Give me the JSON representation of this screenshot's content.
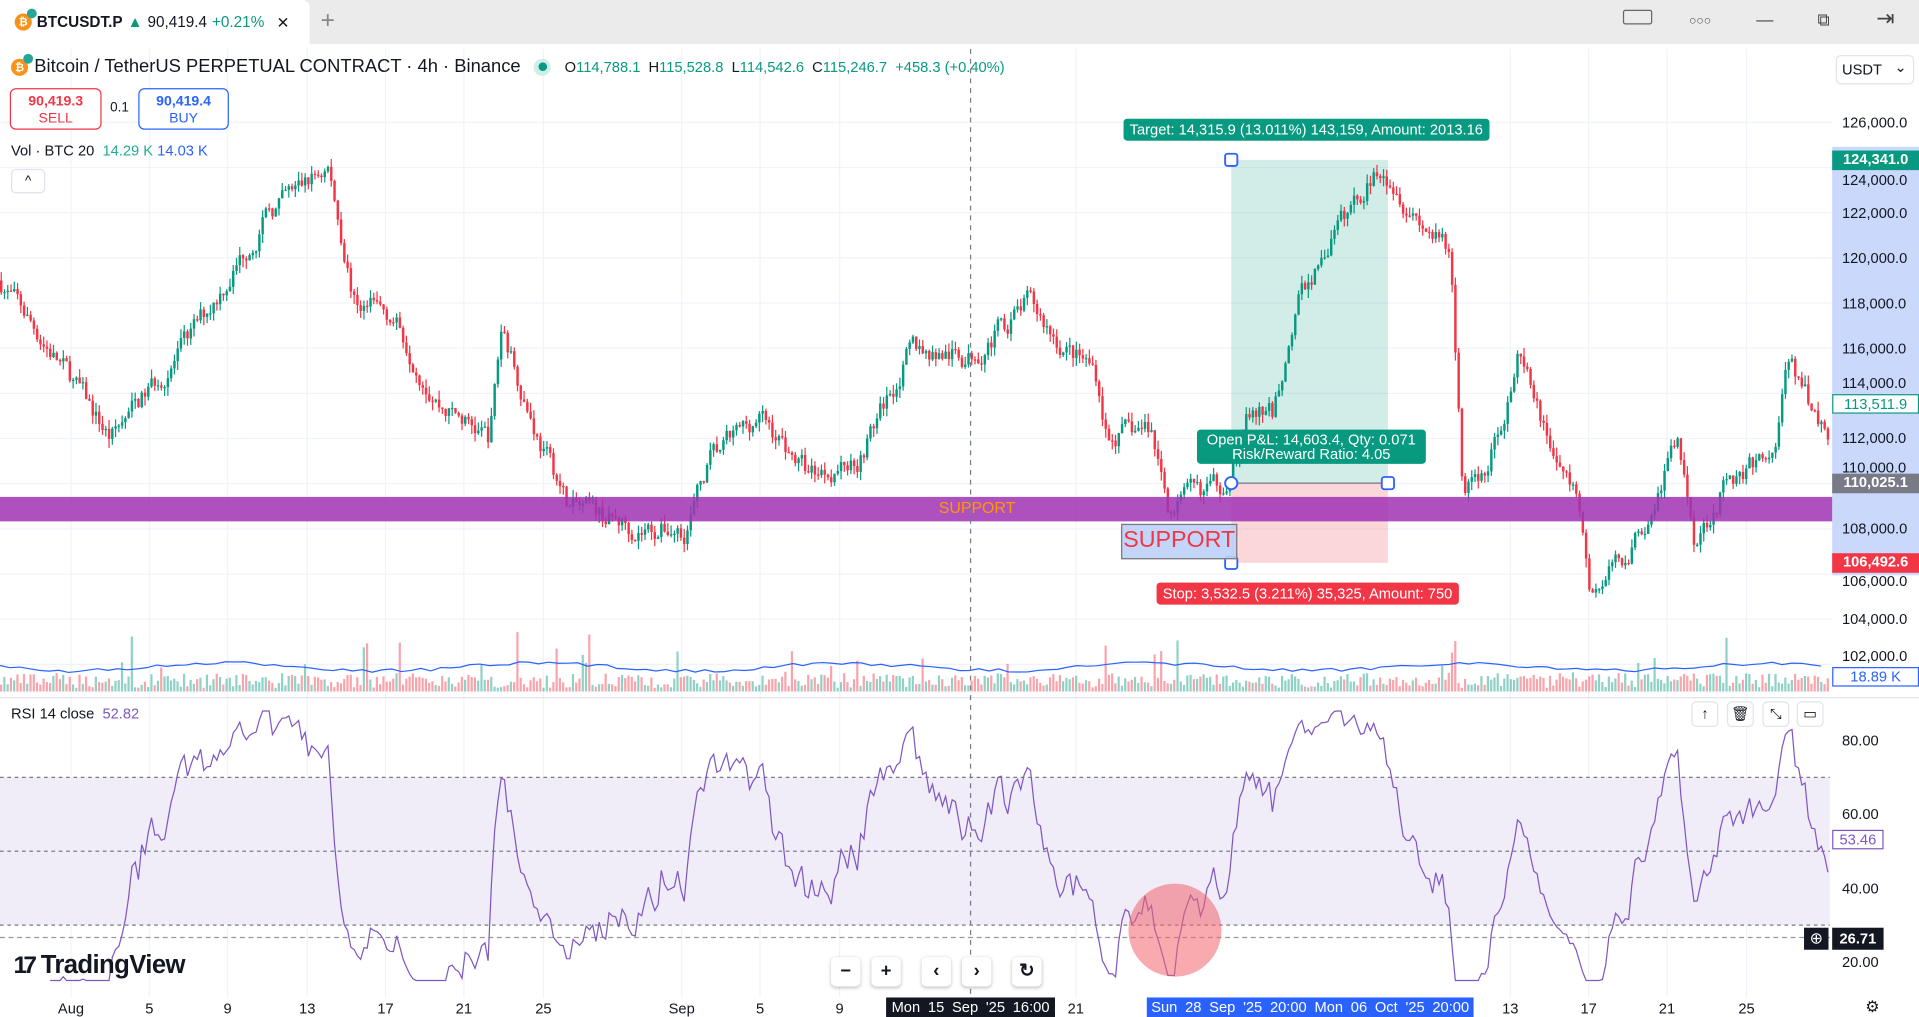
{
  "tab": {
    "symbol": "BTCUSDT.P",
    "arrow": "▲",
    "price": "90,419.4",
    "change": "+0.21%",
    "close": "✕",
    "new_tab": "+"
  },
  "window": {
    "layout_icon": "layout-icon",
    "more": "○○○",
    "minimize": "—",
    "restore": "⧉",
    "exit": "⇥"
  },
  "header": {
    "title": "Bitcoin / TetherUS PERPETUAL CONTRACT · 4h · Binance",
    "o_label": "O",
    "o": "114,788.1",
    "h_label": "H",
    "h": "115,528.8",
    "l_label": "L",
    "l": "114,542.6",
    "c_label": "C",
    "c": "115,246.7",
    "chg": "+458.3 (+0.40%)"
  },
  "trade": {
    "sell_price": "90,419.3",
    "sell_label": "SELL",
    "qty": "0.1",
    "buy_price": "90,419.4",
    "buy_label": "BUY"
  },
  "volume": {
    "label": "Vol · BTC 20",
    "v1": "14.29 K",
    "v2": "14.03 K",
    "collapse": "^"
  },
  "currency": {
    "value": "USDT",
    "chevron": "⌄"
  },
  "price_axis": {
    "ticks": [
      "126,000.0",
      "124,000.0",
      "122,000.0",
      "120,000.0",
      "118,000.0",
      "116,000.0",
      "114,000.0",
      "112,000.0",
      "110,000.0",
      "108,000.0",
      "106,000.0",
      "104,000.0",
      "102,000.0"
    ],
    "target_badge": "124,341.0",
    "last_badge": "113,511.9",
    "entry_badge": "110,025.1",
    "stop_badge": "106,492.6",
    "vol_badge": "18.89 K"
  },
  "position": {
    "target": "Target: 14,315.9 (13.011%) 143,159, Amount: 2013.16",
    "pnl": "Open P&L: 14,603.4, Qty: 0.071",
    "rr": "Risk/Reward Ratio: 4.05",
    "stop": "Stop: 3,532.5 (3.211%) 35,325, Amount: 750"
  },
  "support": {
    "band_label": "SUPPORT",
    "callout": "SUPPORT"
  },
  "rsi": {
    "label": "RSI 14 close",
    "value": "52.82",
    "ticks": [
      "80.00",
      "60.00",
      "40.00",
      "20.00"
    ],
    "value_badge": "53.46",
    "cross_badge": "26.71",
    "buttons": [
      "↑",
      "🗑",
      "⤡",
      "▭"
    ]
  },
  "logo": {
    "text": "TradingView",
    "mark": "17"
  },
  "nav": [
    "−",
    "+",
    "‹",
    "›",
    "↻"
  ],
  "time_axis": {
    "labels": [
      "Aug",
      "5",
      "9",
      "13",
      "17",
      "21",
      "25",
      "Sep",
      "5",
      "9",
      "21",
      "13",
      "17",
      "21",
      "25"
    ],
    "crosshair": "Mon 15 Sep '25   16:00",
    "range": "Sun 28 Sep '25   20:00   Mon 06 Oct '25   20:00",
    "settings": "⚙"
  },
  "colors": {
    "up": "#089981",
    "down": "#f23645",
    "rsi": "#7e57c2",
    "support": "#a742b9",
    "range": "#2962ff"
  }
}
